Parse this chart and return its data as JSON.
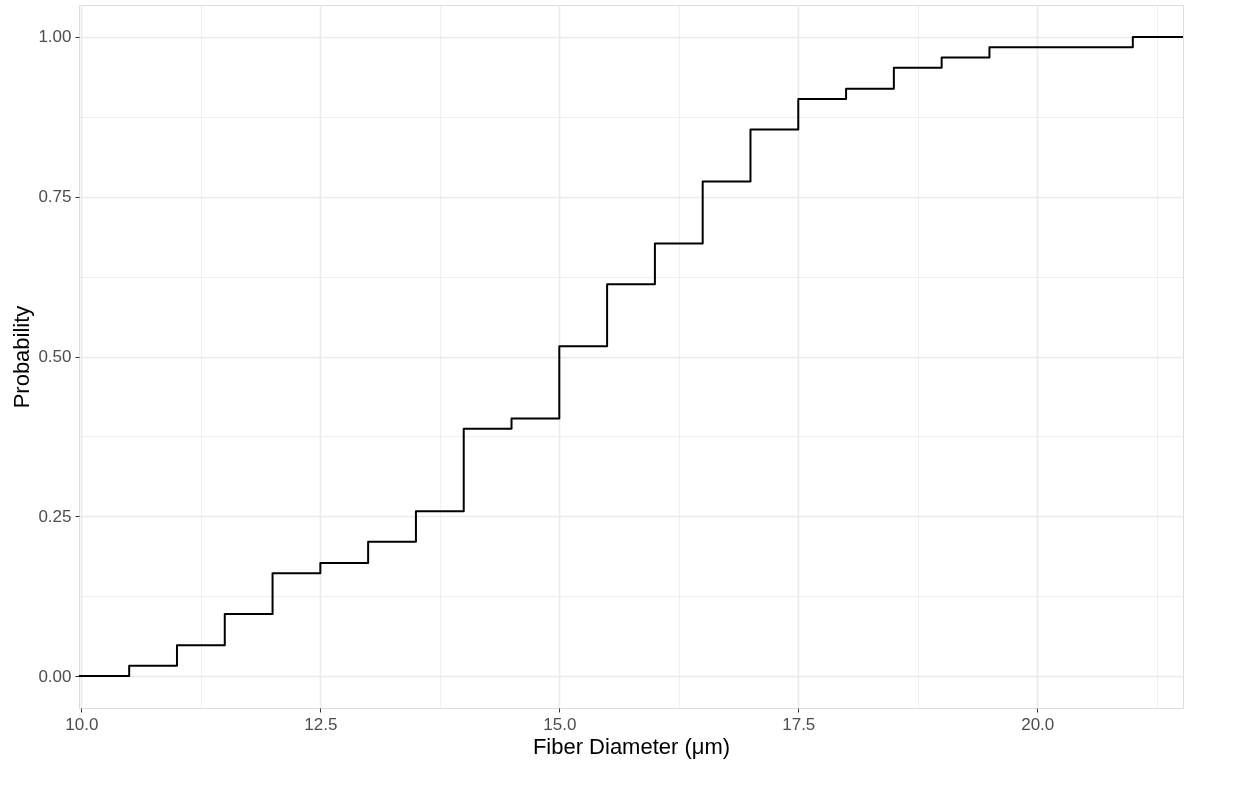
{
  "chart_data": {
    "type": "step",
    "xlabel": "Fiber Diameter (μm)",
    "ylabel": "Probability",
    "x": [
      9.975,
      10.5,
      11.0,
      11.5,
      12.0,
      12.5,
      13.0,
      13.5,
      14.0,
      14.5,
      15.0,
      15.5,
      16.0,
      16.5,
      17.0,
      17.5,
      18.0,
      18.5,
      19.0,
      19.5,
      21.0,
      21.525
    ],
    "series": [
      {
        "color": "#000000",
        "values": [
          0,
          0.016,
          0.048,
          0.097,
          0.161,
          0.177,
          0.21,
          0.258,
          0.387,
          0.403,
          0.516,
          0.613,
          0.677,
          0.774,
          0.855,
          0.903,
          0.919,
          0.952,
          0.968,
          0.984,
          1.0,
          1.0
        ]
      }
    ],
    "xlim": [
      9.975,
      21.525
    ],
    "ylim": [
      -0.05,
      1.05
    ],
    "xticks": [
      {
        "value": 10,
        "label": "10.0"
      },
      {
        "value": 11.25,
        "label": null
      },
      {
        "value": 12.5,
        "label": "12.5"
      },
      {
        "value": 13.75,
        "label": null
      },
      {
        "value": 15,
        "label": "15.0"
      },
      {
        "value": 16.25,
        "label": null
      },
      {
        "value": 17.5,
        "label": "17.5"
      },
      {
        "value": 18.75,
        "label": null
      },
      {
        "value": 20,
        "label": "20.0"
      },
      {
        "value": 21.25,
        "label": null
      }
    ],
    "yticks": [
      {
        "value": 0,
        "label": "0.00"
      },
      {
        "value": 0.125,
        "label": null
      },
      {
        "value": 0.25,
        "label": "0.25"
      },
      {
        "value": 0.375,
        "label": null
      },
      {
        "value": 0.5,
        "label": "0.50"
      },
      {
        "value": 0.625,
        "label": null
      },
      {
        "value": 0.75,
        "label": "0.75"
      },
      {
        "value": 0.875,
        "label": null
      },
      {
        "value": 1,
        "label": "1.00"
      }
    ],
    "grid": true,
    "line_style": "solid"
  }
}
